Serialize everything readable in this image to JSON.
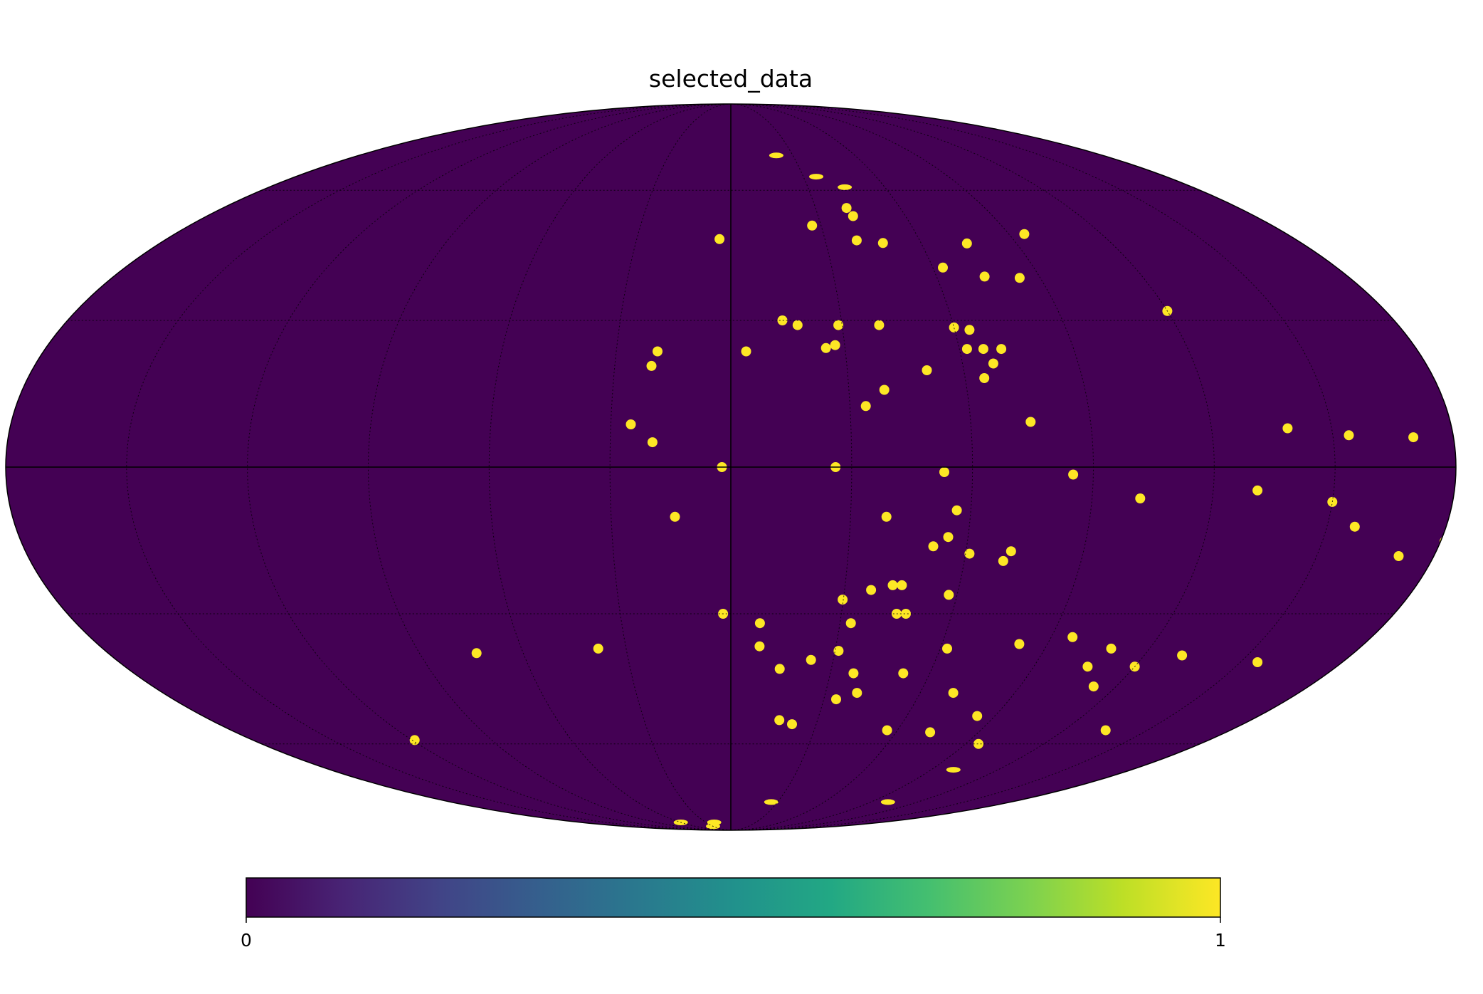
{
  "chart_data": {
    "type": "heatmap",
    "projection": "mollweide",
    "title": "selected_data",
    "colormap": "viridis",
    "colorbar": {
      "orientation": "horizontal",
      "placement": "bottom",
      "min": 0,
      "max": 1,
      "ticks": [
        0,
        1
      ],
      "tick_labels": [
        "0",
        "1"
      ]
    },
    "background_value": 0,
    "graticule": {
      "visible": true,
      "style": "dotted",
      "meridian_step_deg": 30,
      "parallel_step_deg": 30
    },
    "colors": {
      "background_map": "#440154",
      "selected": "#fde725",
      "lines": "#000000"
    },
    "selected_regions_value": 1,
    "selected_regions_lonlat_deg": [
      [
        -22.0,
        69.6
      ],
      [
        -35.3,
        63.6
      ],
      [
        -44.4,
        60.8
      ],
      [
        -41.0,
        55.5
      ],
      [
        -42.0,
        53.5
      ],
      [
        -27.0,
        51.2
      ],
      [
        -40.0,
        47.7
      ],
      [
        -48.0,
        47.1
      ],
      [
        -95.0,
        49.2
      ],
      [
        3.6,
        48.0
      ],
      [
        -74.4,
        47.0
      ],
      [
        -63.0,
        41.5
      ],
      [
        -74.0,
        39.5
      ],
      [
        -84.0,
        39.2
      ],
      [
        -120.0,
        32.0
      ],
      [
        -14.0,
        30.0
      ],
      [
        -18.0,
        29.0
      ],
      [
        -29.0,
        29.0
      ],
      [
        -40.0,
        29.0
      ],
      [
        -60.0,
        28.5
      ],
      [
        -64.0,
        28.0
      ],
      [
        19.2,
        23.5
      ],
      [
        -4.0,
        23.5
      ],
      [
        -25.0,
        24.2
      ],
      [
        -27.5,
        24.8
      ],
      [
        -62.0,
        24.0
      ],
      [
        -66.3,
        24.0
      ],
      [
        -71.0,
        24.0
      ],
      [
        20.5,
        20.5
      ],
      [
        -68.0,
        21.0
      ],
      [
        -50.5,
        19.6
      ],
      [
        -64.9,
        18.0
      ],
      [
        -39.0,
        15.6
      ],
      [
        -34.0,
        12.3
      ],
      [
        25.0,
        8.6
      ],
      [
        -75.0,
        9.1
      ],
      [
        -139.0,
        7.8
      ],
      [
        -154.0,
        6.4
      ],
      [
        -170.0,
        6.0
      ],
      [
        19.5,
        5.0
      ],
      [
        2.2,
        0.0
      ],
      [
        -26.0,
        0.0
      ],
      [
        -53.0,
        -1.0
      ],
      [
        -85.0,
        -1.5
      ],
      [
        -102.0,
        -6.3
      ],
      [
        -131.0,
        -4.7
      ],
      [
        -150.0,
        -7.0
      ],
      [
        -157.0,
        -12.0
      ],
      [
        -56.5,
        -8.7
      ],
      [
        -39.0,
        -10.0
      ],
      [
        14.0,
        -10.0
      ],
      [
        -55.0,
        -14.1
      ],
      [
        -51.5,
        -16.0
      ],
      [
        -71.5,
        -17.0
      ],
      [
        -61.0,
        -17.5
      ],
      [
        -70.0,
        -19.0
      ],
      [
        -42.5,
        -24.0
      ],
      [
        -44.9,
        -24.0
      ],
      [
        -37.0,
        -25.0
      ],
      [
        -57.8,
        -26.0
      ],
      [
        -29.8,
        -27.0
      ],
      [
        -171.0,
        -18.0
      ],
      [
        -181.0,
        -15.0
      ],
      [
        2.1,
        -30.0
      ],
      [
        -8.0,
        -32.0
      ],
      [
        -33.0,
        -32.0
      ],
      [
        -45.0,
        -30.0
      ],
      [
        -47.5,
        -30.0
      ],
      [
        -31.0,
        -38.0
      ],
      [
        -8.2,
        -37.0
      ],
      [
        -62.0,
        -37.5
      ],
      [
        -82.0,
        -36.5
      ],
      [
        -96.0,
        -35.0
      ],
      [
        -109.0,
        -37.5
      ],
      [
        38.0,
        -37.5
      ],
      [
        73.5,
        -38.5
      ],
      [
        -23.5,
        -40.0
      ],
      [
        -14.6,
        -42.0
      ],
      [
        -37.0,
        -43.0
      ],
      [
        -52.0,
        -43.0
      ],
      [
        -106.0,
        -41.5
      ],
      [
        -131.0,
        -39.0
      ],
      [
        -155.0,
        -40.5
      ],
      [
        -120.0,
        -41.5
      ],
      [
        -70.5,
        -47.5
      ],
      [
        -113.0,
        -46.0
      ],
      [
        -34.0,
        -49.0
      ],
      [
        -40.0,
        -47.5
      ],
      [
        -84.0,
        -53.0
      ],
      [
        -16.8,
        -54.0
      ],
      [
        -21.5,
        -55.0
      ],
      [
        -56.3,
        -56.5
      ],
      [
        -72.4,
        -57.0
      ],
      [
        -95.0,
        -60.0
      ],
      [
        -135.0,
        -56.5
      ],
      [
        119.0,
        -59.0
      ],
      [
        -100.0,
        -67.0
      ],
      [
        -26.0,
        -77.0
      ],
      [
        -101.0,
        -77.0
      ],
      [
        20.0,
        -85.0
      ],
      [
        30.0,
        -87.0
      ],
      [
        60.0,
        -85.0
      ]
    ]
  }
}
